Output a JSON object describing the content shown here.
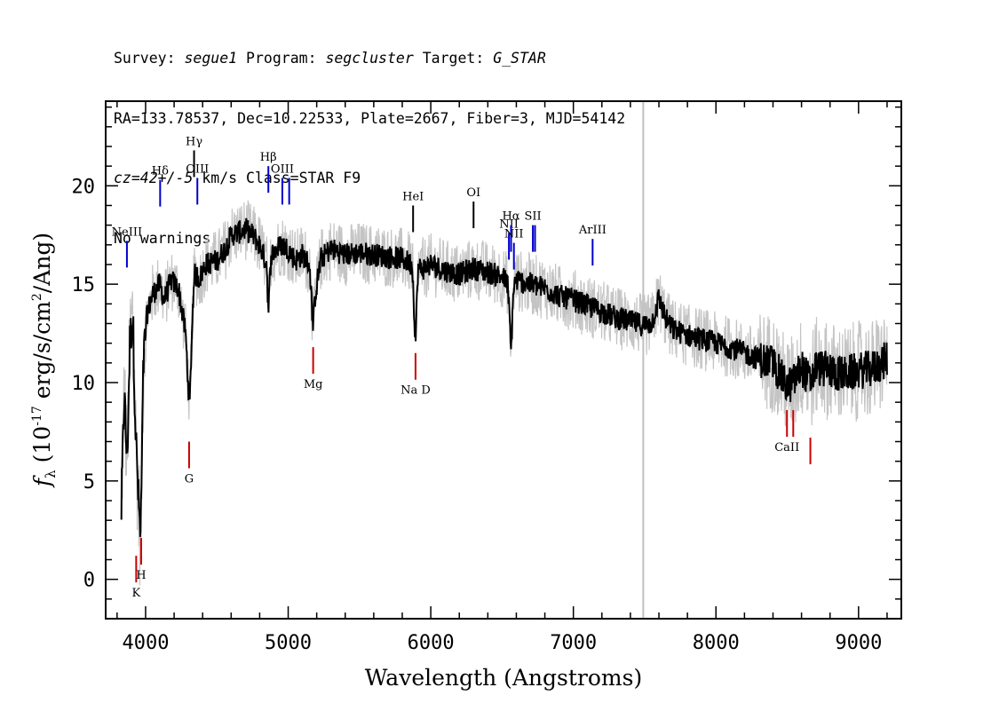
{
  "header": {
    "survey_key": "Survey: ",
    "survey": "segue1",
    "program_key": " Program: ",
    "program": "segcluster",
    "target_key": " Target: ",
    "target": "G_STAR",
    "line2": "RA=133.78537, Dec=10.22533, Plate=2667, Fiber=3, MJD=54142",
    "cz": "cz=42+/-5",
    "line3_rest": " km/s Class=STAR F9",
    "line4": "No warnings."
  },
  "chart_data": {
    "type": "line",
    "xlabel": "Wavelength (Angstroms)",
    "ylabel": "f_λ (10^-17 erg/s/cm^2/Ang)",
    "xlim": [
      3720,
      9300
    ],
    "ylim": [
      -2,
      24.3
    ],
    "xticks": [
      4000,
      5000,
      6000,
      7000,
      8000,
      9000
    ],
    "yticks": [
      0,
      5,
      10,
      15,
      20
    ],
    "x_minor_step": 200,
    "y_minor_step": 1,
    "series": [
      {
        "role": "flux",
        "color": "#000000",
        "x": [
          3830,
          3850,
          3870,
          3890,
          3910,
          3930,
          3950,
          3965,
          3985,
          4010,
          4050,
          4100,
          4130,
          4180,
          4230,
          4280,
          4300,
          4310,
          4320,
          4340,
          4380,
          4420,
          4500,
          4560,
          4600,
          4650,
          4700,
          4750,
          4800,
          4850,
          4861,
          4880,
          4950,
          5000,
          5050,
          5100,
          5150,
          5175,
          5190,
          5230,
          5300,
          5400,
          5500,
          5600,
          5700,
          5800,
          5870,
          5893,
          5910,
          5950,
          6000,
          6100,
          6200,
          6300,
          6400,
          6500,
          6540,
          6563,
          6580,
          6600,
          6700,
          6800,
          6900,
          7000,
          7100,
          7200,
          7300,
          7400,
          7500,
          7550,
          7600,
          7650,
          7700,
          7800,
          7900,
          8000,
          8100,
          8200,
          8300,
          8400,
          8498,
          8542,
          8600,
          8662,
          8700,
          8800,
          8900,
          9000,
          9100,
          9200
        ],
        "y": [
          3.5,
          9.5,
          6.0,
          12.0,
          13.5,
          7.5,
          4.0,
          2.0,
          11.0,
          13.5,
          14.5,
          15.0,
          14.2,
          15.2,
          14.8,
          12.5,
          9.8,
          8.8,
          11.5,
          15.5,
          15.3,
          16.0,
          16.2,
          16.8,
          17.5,
          17.6,
          17.8,
          17.5,
          17.0,
          16.0,
          13.5,
          16.5,
          17.0,
          16.8,
          16.2,
          16.5,
          16.0,
          12.8,
          14.5,
          16.3,
          16.8,
          16.5,
          16.6,
          16.5,
          16.4,
          16.3,
          16.0,
          12.0,
          15.8,
          15.8,
          16.0,
          15.7,
          15.5,
          15.8,
          15.6,
          15.4,
          15.0,
          11.6,
          14.8,
          15.2,
          15.0,
          14.8,
          14.4,
          14.2,
          13.9,
          13.6,
          13.3,
          13.1,
          12.9,
          13.0,
          14.3,
          13.2,
          12.7,
          12.4,
          12.2,
          12.0,
          11.8,
          11.5,
          11.2,
          11.0,
          9.8,
          10.0,
          10.8,
          10.0,
          10.8,
          10.6,
          10.4,
          10.6,
          10.7,
          11.2
        ]
      }
    ],
    "divider_x": 7490,
    "emission_lines": [
      {
        "label": "NeIII",
        "x": 3869,
        "y": 17.2,
        "color": "#0000cc"
      },
      {
        "label": "Hδ",
        "x": 4102,
        "y": 20.3,
        "color": "#0000cc"
      },
      {
        "label": "Hγ",
        "x": 4340,
        "y": 21.8,
        "color": "#000000"
      },
      {
        "label": "OIII",
        "x": 4363,
        "y": 20.4,
        "color": "#0000cc"
      },
      {
        "label": "Hβ",
        "x": 4861,
        "y": 21.0,
        "color": "#0000cc"
      },
      {
        "label": "OIII",
        "x": 4959,
        "y": 20.4,
        "color": "#0000cc"
      },
      {
        "label": "",
        "x": 5007,
        "y": 20.4,
        "color": "#0000cc"
      },
      {
        "label": "HeI",
        "x": 5876,
        "y": 19.0,
        "color": "#000000"
      },
      {
        "label": "OI",
        "x": 6300,
        "y": 19.2,
        "color": "#000000"
      },
      {
        "label": "NII",
        "x": 6548,
        "y": 17.6,
        "color": "#0000cc"
      },
      {
        "label": "Hα",
        "x": 6563,
        "y": 18.0,
        "color": "#0000cc"
      },
      {
        "label": "NII",
        "x": 6583,
        "y": 17.1,
        "color": "#0000cc"
      },
      {
        "label": "SII",
        "x": 6716,
        "y": 18.0,
        "color": "#0000cc"
      },
      {
        "label": "",
        "x": 6731,
        "y": 18.0,
        "color": "#0000cc"
      },
      {
        "label": "ArIII",
        "x": 7135,
        "y": 17.3,
        "color": "#0000cc"
      }
    ],
    "absorption_lines": [
      {
        "label": "K",
        "x": 3934,
        "y": 1.2,
        "color": "#cc0000"
      },
      {
        "label": "H",
        "x": 3969,
        "y": 2.1,
        "color": "#cc0000"
      },
      {
        "label": "G",
        "x": 4305,
        "y": 7.0,
        "color": "#cc0000"
      },
      {
        "label": "Mg",
        "x": 5175,
        "y": 11.8,
        "color": "#cc0000"
      },
      {
        "label": "Na D",
        "x": 5893,
        "y": 11.5,
        "color": "#cc0000"
      },
      {
        "label": "CaII",
        "x": 8498,
        "y": 8.6,
        "color": "#cc0000"
      },
      {
        "label": "",
        "x": 8542,
        "y": 8.6,
        "color": "#cc0000"
      },
      {
        "label": "",
        "x": 8662,
        "y": 7.2,
        "color": "#cc0000"
      }
    ]
  }
}
